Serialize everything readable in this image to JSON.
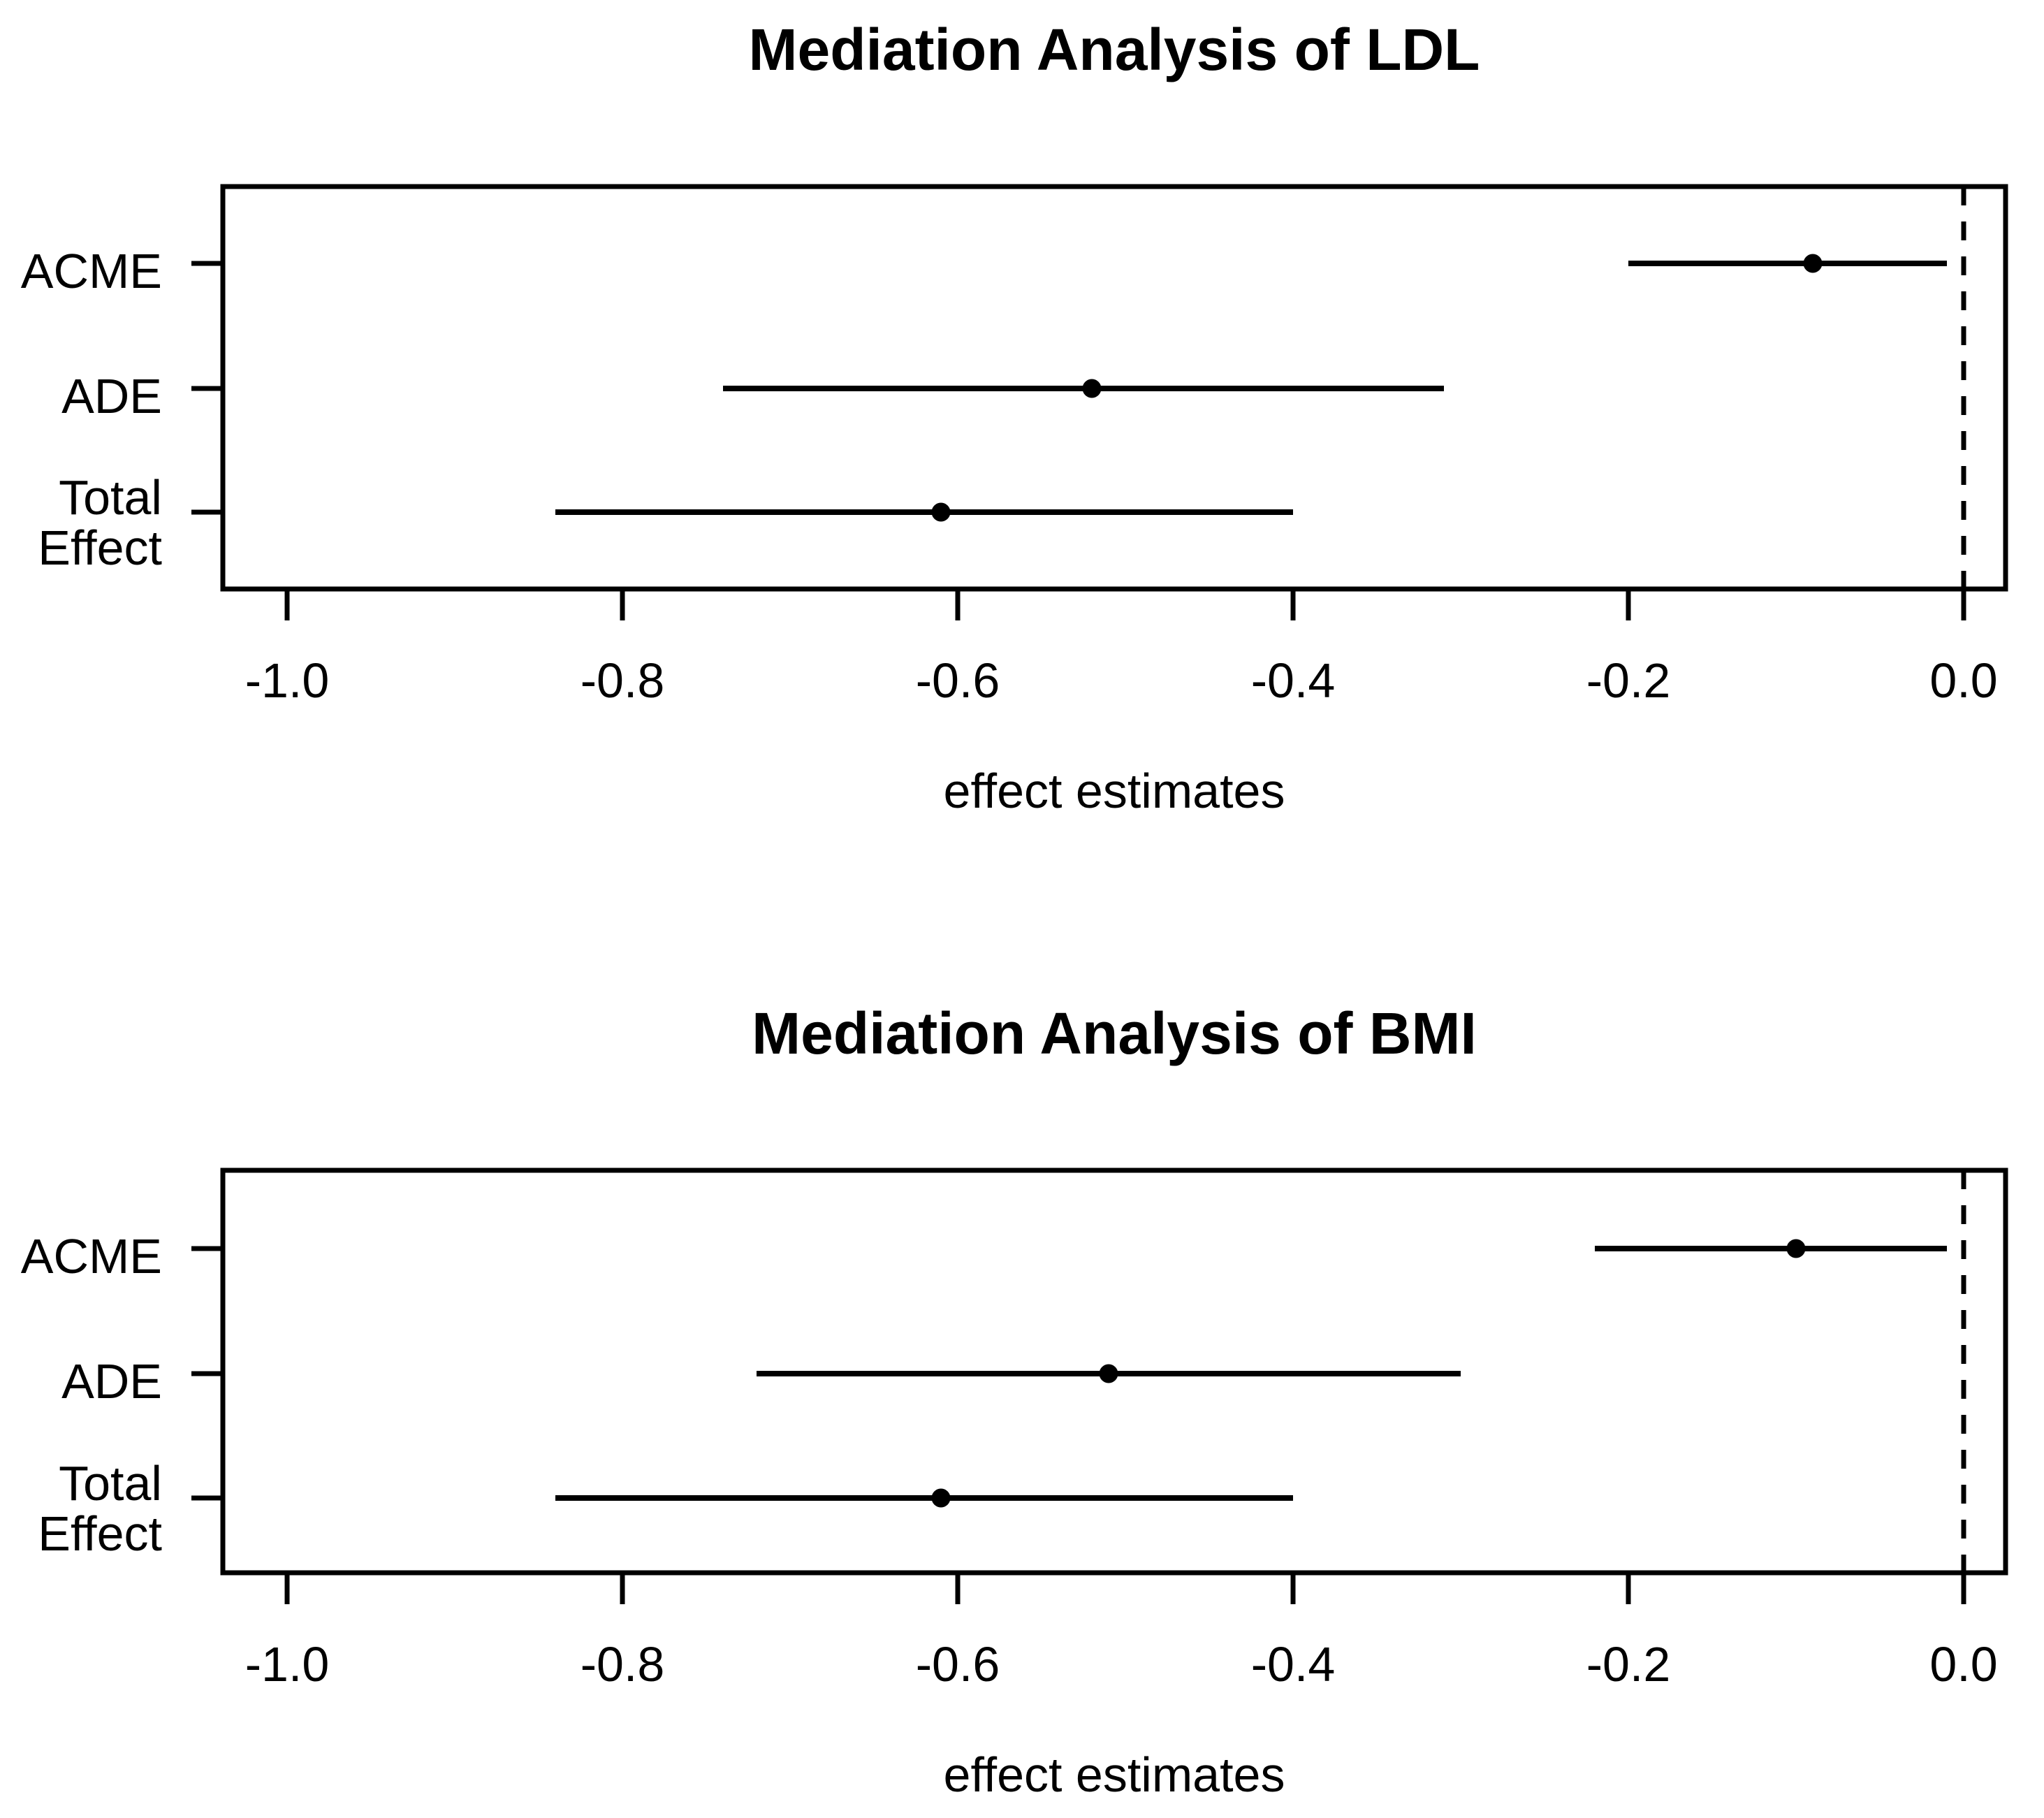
{
  "figure": {
    "background": "#ffffff",
    "ink_color": "#000000"
  },
  "chart_data": [
    {
      "type": "scatter",
      "subtype": "forest-dot-whisker",
      "title": "Mediation Analysis of LDL",
      "xlabel": "effect estimates",
      "ylabel": "",
      "categories": [
        "ACME",
        "ADE",
        "Total Effect"
      ],
      "row_label_lines": [
        [
          "ACME"
        ],
        [
          "ADE"
        ],
        [
          "Total",
          "Effect"
        ]
      ],
      "x_ticks": [
        -1.0,
        -0.8,
        -0.6,
        -0.4,
        -0.2,
        0.0
      ],
      "x_tick_labels": [
        "-1.0",
        "-0.8",
        "-0.6",
        "-0.4",
        "-0.2",
        "0.0"
      ],
      "xlim": [
        -1.04,
        0.025
      ],
      "grid": false,
      "legend": "none",
      "reference_line": {
        "x": 0.0,
        "style": "dashed"
      },
      "points": [
        {
          "label": "ACME",
          "estimate": -0.09,
          "ci_low": -0.2,
          "ci_high": -0.01
        },
        {
          "label": "ADE",
          "estimate": -0.52,
          "ci_low": -0.74,
          "ci_high": -0.31
        },
        {
          "label": "Total Effect",
          "estimate": -0.61,
          "ci_low": -0.84,
          "ci_high": -0.4
        }
      ]
    },
    {
      "type": "scatter",
      "subtype": "forest-dot-whisker",
      "title": "Mediation Analysis of BMI",
      "xlabel": "effect estimates",
      "ylabel": "",
      "categories": [
        "ACME",
        "ADE",
        "Total Effect"
      ],
      "row_label_lines": [
        [
          "ACME"
        ],
        [
          "ADE"
        ],
        [
          "Total",
          "Effect"
        ]
      ],
      "x_ticks": [
        -1.0,
        -0.8,
        -0.6,
        -0.4,
        -0.2,
        0.0
      ],
      "x_tick_labels": [
        "-1.0",
        "-0.8",
        "-0.6",
        "-0.4",
        "-0.2",
        "0.0"
      ],
      "xlim": [
        -1.04,
        0.025
      ],
      "grid": false,
      "legend": "none",
      "reference_line": {
        "x": 0.0,
        "style": "dashed"
      },
      "points": [
        {
          "label": "ACME",
          "estimate": -0.1,
          "ci_low": -0.22,
          "ci_high": -0.01
        },
        {
          "label": "ADE",
          "estimate": -0.51,
          "ci_low": -0.72,
          "ci_high": -0.3
        },
        {
          "label": "Total Effect",
          "estimate": -0.61,
          "ci_low": -0.84,
          "ci_high": -0.4
        }
      ]
    }
  ]
}
